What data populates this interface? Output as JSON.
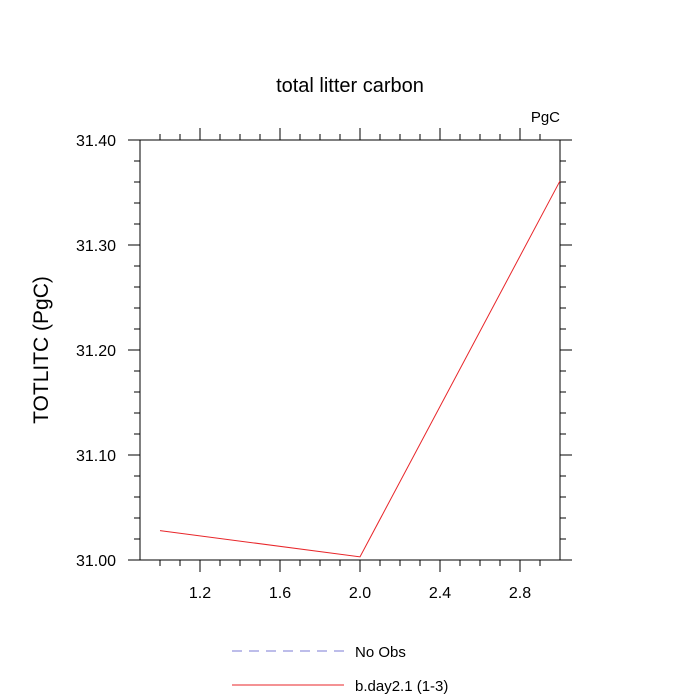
{
  "chart_data": {
    "type": "line",
    "title": "total litter carbon",
    "units": "PgC",
    "ylabel": "TOTLITC  (PgC)",
    "xlabel": "",
    "xlim": [
      0.9,
      3.0
    ],
    "ylim": [
      31.0,
      31.4
    ],
    "x_ticks": [
      1.2,
      1.6,
      2.0,
      2.4,
      2.8
    ],
    "x_tick_labels": [
      "1.2",
      "1.6",
      "2.0",
      "2.4",
      "2.8"
    ],
    "y_ticks": [
      31.0,
      31.1,
      31.2,
      31.3,
      31.4
    ],
    "y_tick_labels": [
      "31.00",
      "31.10",
      "31.20",
      "31.30",
      "31.40"
    ],
    "grid": false,
    "legend_position": "bottom",
    "series": [
      {
        "name": "No Obs",
        "color": "#7b7bd6",
        "dash": true,
        "x": [],
        "y": []
      },
      {
        "name": "b.day2.1 (1-3)",
        "color": "#e8262a",
        "dash": false,
        "x": [
          1.0,
          2.0,
          3.0
        ],
        "y": [
          31.028,
          31.003,
          31.361
        ]
      }
    ]
  }
}
